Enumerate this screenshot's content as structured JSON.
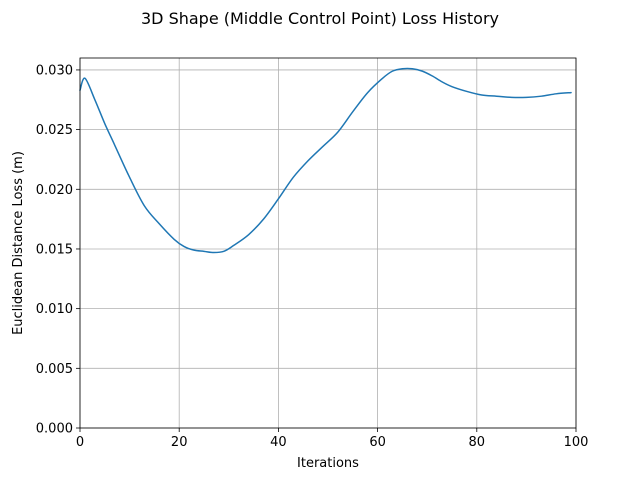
{
  "chart_data": {
    "type": "line",
    "title": "3D Shape (Middle Control Point) Loss History",
    "xlabel": "Iterations",
    "ylabel": "Euclidean Distance Loss (m)",
    "xlim": [
      0,
      100
    ],
    "ylim": [
      0.0,
      0.031
    ],
    "xticks": [
      0,
      20,
      40,
      60,
      80,
      100
    ],
    "xtick_labels": [
      "0",
      "20",
      "40",
      "60",
      "80",
      "100"
    ],
    "yticks": [
      0.0,
      0.005,
      0.01,
      0.015,
      0.02,
      0.025,
      0.03
    ],
    "ytick_labels": [
      "0.000",
      "0.005",
      "0.010",
      "0.015",
      "0.020",
      "0.025",
      "0.030"
    ],
    "grid": true,
    "legend": "none",
    "series": [
      {
        "color": "#1f77b4",
        "x": [
          0,
          1,
          3,
          5,
          7,
          10,
          13,
          16,
          19,
          21,
          23,
          25,
          27,
          29,
          31,
          34,
          37,
          40,
          43,
          46,
          49,
          52,
          55,
          58,
          61,
          63,
          65,
          67,
          69,
          71,
          73,
          75,
          78,
          81,
          84,
          87,
          90,
          93,
          96,
          99
        ],
        "y": [
          0.0283,
          0.0293,
          0.0275,
          0.0255,
          0.0237,
          0.021,
          0.0186,
          0.0171,
          0.0158,
          0.0152,
          0.0149,
          0.0148,
          0.0147,
          0.0148,
          0.0153,
          0.0162,
          0.0175,
          0.0192,
          0.021,
          0.0224,
          0.0236,
          0.0248,
          0.0265,
          0.0281,
          0.0293,
          0.0299,
          0.0301,
          0.0301,
          0.0299,
          0.0295,
          0.029,
          0.0286,
          0.0282,
          0.0279,
          0.0278,
          0.0277,
          0.0277,
          0.0278,
          0.028,
          0.0281
        ]
      }
    ]
  }
}
